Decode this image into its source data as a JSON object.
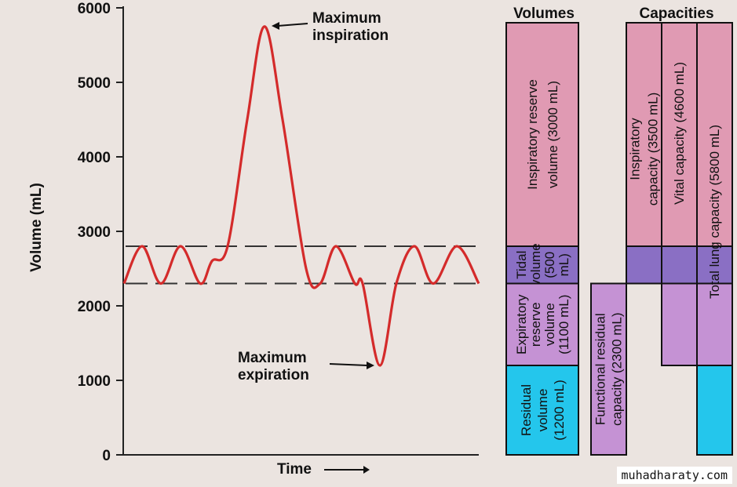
{
  "chart_data": {
    "type": "line",
    "y_axis": {
      "label": "Volume (mL)",
      "ticks": [
        0,
        1000,
        2000,
        3000,
        4000,
        5000,
        6000
      ],
      "range": [
        0,
        6000
      ]
    },
    "x_axis": {
      "label": "Time"
    },
    "tidal_band": {
      "lower": 2300,
      "upper": 2800
    },
    "series": [
      {
        "values": [
          2300,
          2800,
          2300,
          2800,
          2300,
          2600,
          2800,
          4500,
          5750,
          4500,
          2500,
          2300,
          2800,
          2300,
          2300,
          1200,
          2300,
          2800,
          2300,
          2800,
          2300
        ]
      }
    ],
    "annotations": {
      "max_inspiration": "Maximum\ninspiration",
      "max_expiration": "Maximum\nexpiration"
    }
  },
  "lung_volumes": {
    "header": "Volumes",
    "segments": [
      {
        "label": "Inspiratory reserve\nvolume (3000 mL)",
        "from": 2800,
        "to": 5800,
        "color": "#e09ab3"
      },
      {
        "label": "Tidal\nvolume\n(500\nmL)",
        "from": 2300,
        "to": 2800,
        "color": "#8a6fc4"
      },
      {
        "label": "Expiratory\nreserve\nvolume\n(1100 mL)",
        "from": 1200,
        "to": 2300,
        "color": "#c592d4"
      },
      {
        "label": "Residual\nvolume\n(1200 mL)",
        "from": 0,
        "to": 1200,
        "color": "#24c6ec"
      }
    ]
  },
  "lung_capacities": {
    "header": "Capacities",
    "functional_residual": {
      "label": "Functional residual\ncapacity (2300 mL)",
      "from": 0,
      "to": 2300,
      "color": "#c592d4"
    },
    "inspiratory": {
      "label": "Inspiratory\ncapacity (3500 mL)",
      "from": 2300,
      "to": 5800,
      "top_color": "#e09ab3",
      "bottom_color": "#8a6fc4"
    },
    "vital": {
      "label": "Vital capacity (4600 mL)",
      "from": 1200,
      "to": 5800,
      "top_color": "#e09ab3",
      "mid_color": "#8a6fc4",
      "bottom_color": "#c592d4"
    },
    "total": {
      "label": "Total lung capacity (5800 mL)",
      "from": 0,
      "to": 5800,
      "top_color": "#e09ab3",
      "mid_color": "#8a6fc4",
      "low_color": "#c592d4",
      "bottom_color": "#24c6ec"
    }
  },
  "watermark": "muhadharaty.com"
}
